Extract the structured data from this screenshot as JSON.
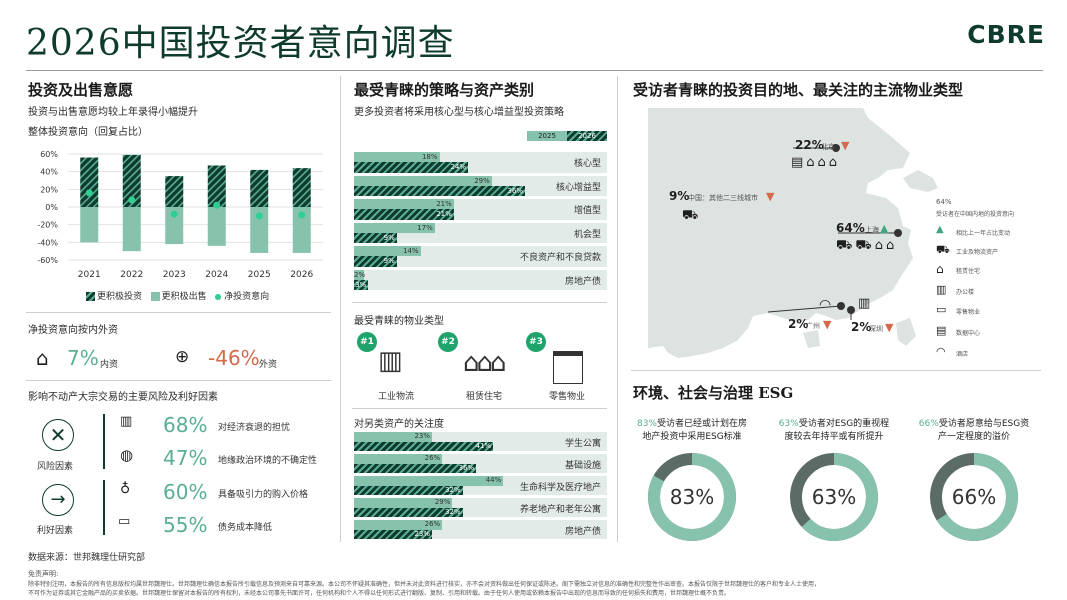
{
  "title": "2026中国投资者意向调查",
  "logo": "CBRE",
  "sec1": {
    "heading": "投资及出售意愿",
    "sub": "投资与出售意愿均较上年录得小幅提升",
    "chart_title": "整体投资意向（回复占比）",
    "legend": [
      "更积极投资",
      "更积极出售",
      "净投资意向"
    ],
    "colors": {
      "invest": "#0f3b2e",
      "sell": "#86c2ac",
      "net": "#2fcf93"
    }
  },
  "chart_data": {
    "type": "bar",
    "categories": [
      "2021",
      "2022",
      "2023",
      "2024",
      "2025",
      "2026"
    ],
    "series": [
      {
        "name": "更积极投资",
        "values": [
          56,
          59,
          35,
          47,
          42,
          44
        ]
      },
      {
        "name": "更积极出售",
        "values": [
          -40,
          -50,
          -42,
          -44,
          -52,
          -52
        ]
      },
      {
        "name": "净投资意向",
        "values": [
          16,
          8,
          -8,
          2,
          -10,
          -9
        ]
      }
    ],
    "yticks": [
      "60%",
      "40%",
      "20%",
      "0%",
      "-20%",
      "-40%",
      "-60%"
    ],
    "ylim": [
      -60,
      60
    ]
  },
  "net": {
    "heading": "净投资意向按内外资",
    "domestic_value": "7%",
    "domestic_label": "内资",
    "foreign_value": "-46%",
    "foreign_label": "外资"
  },
  "risk": {
    "heading": "影响不动产大宗交易的主要风险及利好因素",
    "risk_label": "风险因素",
    "good_label": "利好因素",
    "items": [
      {
        "pct": "68%",
        "text": "对经济衰退的担忧"
      },
      {
        "pct": "47%",
        "text": "地缘政治环境的不确定性"
      },
      {
        "pct": "60%",
        "text": "具备吸引力的购入价格"
      },
      {
        "pct": "55%",
        "text": "债务成本降低"
      }
    ]
  },
  "source": "数据来源：世邦魏理仕研究部",
  "disclaimer_title": "免责声明:",
  "disclaimer_1": "除非特别注明，本报告的所有信息版权均属世邦魏理仕。世邦魏理仕确信本报告所引载信息及预测来自可靠来源。本公司不怀疑其准确性，但并未对此资料进行核实，亦不会对资料做出任何保证或陈述。阁下需独立对信息的准确性和完整性作出审查。本报告仅限于世邦魏理仕的客户和专业人士使用，",
  "disclaimer_2": "不可作为证券或其它金融产品的买卖依据。世邦魏理仕保留对本报告的所有权利，未经本公司事先书面许可，任何机构和个人不得以任何形式进行翻版、复制、引用和转载。由于任何人使用或依赖本报告中出现的信息而导致的任何损失和费用，世邦魏理仕概不负责。",
  "sec2": {
    "heading": "最受青睐的策略与资产类别",
    "sub": "更多投资者将采用核心型与核心增益型投资策略",
    "legend": [
      "2025",
      "2026"
    ],
    "strategies": [
      {
        "name": "核心型",
        "v2025": 18,
        "v2026": 24,
        "l2025": "18%",
        "l2026": "24%"
      },
      {
        "name": "核心增益型",
        "v2025": 29,
        "v2026": 36,
        "l2025": "29%",
        "l2026": "36%"
      },
      {
        "name": "增值型",
        "v2025": 21,
        "v2026": 21,
        "l2025": "21%",
        "l2026": "21%"
      },
      {
        "name": "机会型",
        "v2025": 17,
        "v2026": 9,
        "l2025": "17%",
        "l2026": "9%"
      },
      {
        "name": "不良资产和不良贷款",
        "v2025": 14,
        "v2026": 9,
        "l2025": "14%",
        "l2026": "9%"
      },
      {
        "name": "房地产债",
        "v2025": 2,
        "v2026": 3,
        "l2025": "2%",
        "l2026": "3%"
      }
    ],
    "property_heading": "最受青睐的物业类型",
    "property": [
      {
        "rank": "#1",
        "label": "工业物流"
      },
      {
        "rank": "#2",
        "label": "租赁住宅"
      },
      {
        "rank": "#3",
        "label": "零售物业"
      }
    ],
    "alt_heading": "对另类资产的关注度",
    "alt": [
      {
        "name": "学生公寓",
        "v2025": 23,
        "v2026": 41,
        "l2025": "23%",
        "l2026": "41%"
      },
      {
        "name": "基础设施",
        "v2025": 26,
        "v2026": 36,
        "l2025": "26%",
        "l2026": "36%"
      },
      {
        "name": "生命科学及医疗地产",
        "v2025": 44,
        "v2026": 32,
        "l2025": "44%",
        "l2026": "32%"
      },
      {
        "name": "养老地产和老年公寓",
        "v2025": 29,
        "v2026": 32,
        "l2025": "29%",
        "l2026": "32%"
      },
      {
        "name": "房地产债",
        "v2025": 26,
        "v2026": 23,
        "l2025": "26%",
        "l2026": "23%"
      }
    ]
  },
  "sec3": {
    "heading": "受访者青睐的投资目的地、最关注的主流物业类型",
    "beijing_pct": "22%",
    "beijing": "北京",
    "tier2_pct": "9%",
    "tier2": "中国：其他二三线城市",
    "shanghai_pct": "64%",
    "shanghai": "上海",
    "guangzhou_pct": "2%",
    "guangzhou": "广州",
    "shenzhen_pct": "2%",
    "shenzhen": "深圳",
    "legend_pct": "64%",
    "legend_title": "受访者在中国内地的投资意向",
    "legend_items": [
      "相比上一年占比变动",
      "工业及物流资产",
      "租赁住宅",
      "办公楼",
      "零售物业",
      "数据中心",
      "酒店"
    ]
  },
  "esg": {
    "heading": "环境、社会与治理 ESG",
    "items": [
      {
        "pct_text": "83%",
        "text1": "受访者已经或计划在房",
        "text2": "地产投资中采用ESG标准",
        "ring": "83%",
        "value": 83
      },
      {
        "pct_text": "63%",
        "text1": "受访者对ESG的重视程",
        "text2": "度较去年持平或有所提升",
        "ring": "63%",
        "value": 63
      },
      {
        "pct_text": "66%",
        "text1": "受访者愿意给与ESG资",
        "text2": "产一定程度的溢价",
        "ring": "66%",
        "value": 66
      }
    ]
  }
}
